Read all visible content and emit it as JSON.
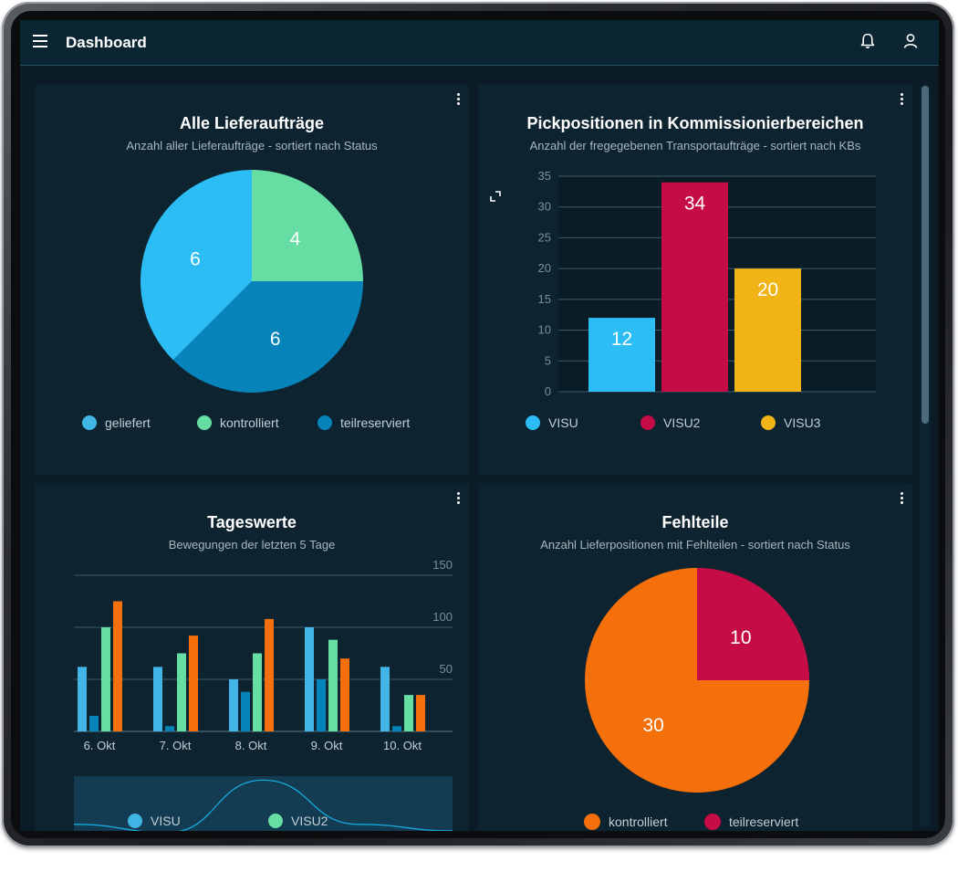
{
  "app": {
    "title": "Dashboard"
  },
  "icons": {
    "menu": "menu-icon",
    "notifications": "bell-icon",
    "user": "user-icon",
    "more": "more-vert-icon",
    "expand": "expand-icon"
  },
  "colors": {
    "light_blue": "#2bbdf3",
    "green": "#66dea3",
    "dark_blue": "#0684b9",
    "crimson": "#c60c47",
    "yellow": "#f0b416",
    "orange": "#f56f0b"
  },
  "cards": {
    "lieferauftraege": {
      "title": "Alle Lieferaufträge",
      "subtitle": "Anzahl aller Lieferaufträge - sortiert nach Status",
      "legend": [
        "geliefert",
        "kontrolliert",
        "teilreserviert"
      ]
    },
    "pickpositionen": {
      "title": "Pickpositionen in Kommissionierbereichen",
      "subtitle": "Anzahl der fregegebenen Transportaufträge - sortiert nach KBs",
      "legend": [
        "VISU",
        "VISU2",
        "VISU3"
      ]
    },
    "tageswerte": {
      "title": "Tageswerte",
      "subtitle": "Bewegungen der letzten 5 Tage",
      "legend": [
        "VISU",
        "VISU2"
      ]
    },
    "fehlteile": {
      "title": "Fehlteile",
      "subtitle": "Anzahl Lieferpositionen mit Fehlteilen - sortiert nach Status",
      "legend": [
        "kontrolliert",
        "teilreserviert"
      ]
    }
  },
  "chart_data": [
    {
      "type": "pie",
      "title": "Alle Lieferaufträge",
      "labels": [
        "geliefert",
        "kontrolliert",
        "teilreserviert"
      ],
      "values": [
        6,
        4,
        6
      ],
      "colors": [
        "#2bbdf3",
        "#66dea3",
        "#0684b9"
      ]
    },
    {
      "type": "bar",
      "title": "Pickpositionen in Kommissionierbereichen",
      "categories": [
        "VISU",
        "VISU2",
        "VISU3"
      ],
      "values": [
        12,
        34,
        20
      ],
      "colors": [
        "#2bbdf3",
        "#c60c47",
        "#f0b416"
      ],
      "ylim": [
        0,
        35
      ],
      "yticks": [
        0,
        5,
        10,
        15,
        20,
        25,
        30,
        35
      ],
      "grid": true
    },
    {
      "type": "bar",
      "title": "Tageswerte",
      "categories": [
        "6. Okt",
        "7. Okt",
        "8. Okt",
        "9. Okt",
        "10. Okt"
      ],
      "series": [
        {
          "values": [
            62,
            62,
            50,
            100,
            62
          ],
          "color": "#41b6e6"
        },
        {
          "values": [
            15,
            5,
            38,
            50,
            5
          ],
          "color": "#0684b9"
        },
        {
          "values": [
            100,
            75,
            75,
            88,
            35
          ],
          "color": "#66dea3"
        },
        {
          "values": [
            125,
            92,
            108,
            0,
            35
          ],
          "color": "#f56f0b"
        }
      ],
      "series_extra": {
        "visu_high_okt9": 55,
        "orange_okt9": 70
      },
      "ylim": [
        0,
        150
      ],
      "yticks": [
        50,
        100,
        150
      ],
      "navigator": {
        "x": [
          "6. Okt",
          "7. Okt",
          "8. Okt",
          "9. Okt",
          "10. Okt"
        ],
        "values": [
          40,
          30,
          95,
          40,
          32
        ]
      }
    },
    {
      "type": "pie",
      "title": "Fehlteile",
      "labels": [
        "kontrolliert",
        "teilreserviert"
      ],
      "values": [
        30,
        10
      ],
      "colors": [
        "#f56f0b",
        "#c60c47"
      ]
    }
  ]
}
